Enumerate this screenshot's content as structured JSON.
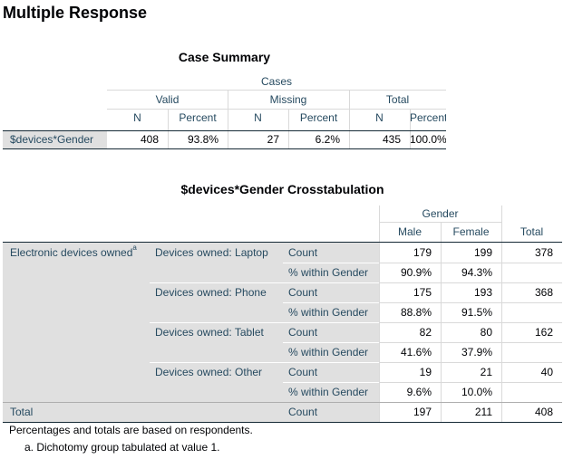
{
  "title": "Multiple Response",
  "case_summary": {
    "title": "Case Summary",
    "header": {
      "group": "Cases",
      "subgroups": [
        "Valid",
        "Missing",
        "Total"
      ],
      "columns": [
        "N",
        "Percent",
        "N",
        "Percent",
        "N",
        "Percent"
      ]
    },
    "row": {
      "label": "$devices*Gender",
      "cells": [
        "408",
        "93.8%",
        "27",
        "6.2%",
        "435",
        "100.0%"
      ]
    }
  },
  "crosstab": {
    "title": "$devices*Gender Crosstabulation",
    "header": {
      "group": "Gender",
      "columns": [
        "Male",
        "Female"
      ],
      "total": "Total"
    },
    "row_group": "Electronic devices owned",
    "footnote_marker": "a",
    "rows": [
      {
        "label": "Devices owned: Laptop",
        "count_label": "Count",
        "count": [
          "179",
          "199",
          "378"
        ],
        "pct_label": "% within Gender",
        "pct": [
          "90.9%",
          "94.3%"
        ]
      },
      {
        "label": "Devices owned: Phone",
        "count_label": "Count",
        "count": [
          "175",
          "193",
          "368"
        ],
        "pct_label": "% within Gender",
        "pct": [
          "88.8%",
          "91.5%"
        ]
      },
      {
        "label": "Devices owned: Tablet",
        "count_label": "Count",
        "count": [
          "82",
          "80",
          "162"
        ],
        "pct_label": "% within Gender",
        "pct": [
          "41.6%",
          "37.9%"
        ]
      },
      {
        "label": "Devices owned: Other",
        "count_label": "Count",
        "count": [
          "19",
          "21",
          "40"
        ],
        "pct_label": "% within Gender",
        "pct": [
          "9.6%",
          "10.0%"
        ]
      }
    ],
    "total": {
      "label": "Total",
      "count_label": "Count",
      "cells": [
        "197",
        "211",
        "408"
      ]
    }
  },
  "notes": [
    "Percentages and totals are based on respondents.",
    "a. Dichotomy group tabulated at value 1."
  ]
}
